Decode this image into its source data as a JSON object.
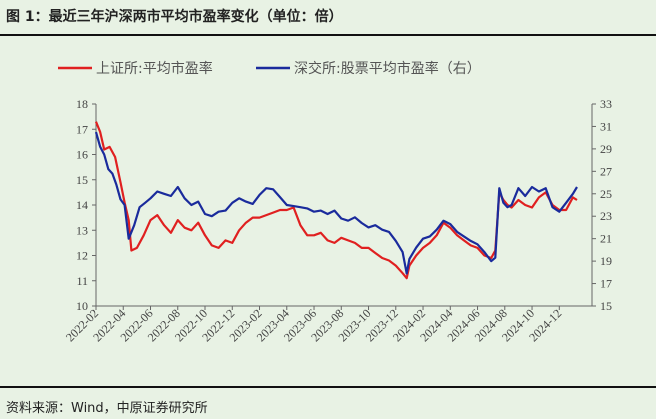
{
  "figure": {
    "title": "图 1：最近三年沪深两市平均市盈率变化（单位：倍）",
    "source": "资料来源：Wind，中原证券研究所"
  },
  "chart_data": {
    "type": "line",
    "legend": [
      "上证所:平均市盈率",
      "深交所:股票平均市盈率（右）"
    ],
    "y_left": {
      "min": 10,
      "max": 18,
      "ticks": [
        10,
        11,
        12,
        13,
        14,
        15,
        16,
        17,
        18
      ]
    },
    "y_right": {
      "min": 15,
      "max": 33,
      "ticks": [
        15,
        17,
        19,
        21,
        23,
        25,
        27,
        29,
        31,
        33
      ]
    },
    "x_labels": [
      "2022-02",
      "2022-04",
      "2022-06",
      "2022-08",
      "2022-10",
      "2022-12",
      "2023-02",
      "2023-04",
      "2023-06",
      "2023-08",
      "2023-10",
      "2023-12",
      "2024-02",
      "2024-04",
      "2024-06",
      "2024-08",
      "2024-10",
      "2024-12"
    ],
    "x_range": [
      0,
      36.4
    ],
    "series": [
      {
        "name": "上证所:平均市盈率",
        "color": "#e02020",
        "axis": "left",
        "points": [
          [
            0,
            17.3
          ],
          [
            0.3,
            16.9
          ],
          [
            0.6,
            16.2
          ],
          [
            1.0,
            16.3
          ],
          [
            1.4,
            15.9
          ],
          [
            1.8,
            14.9
          ],
          [
            2.1,
            14.1
          ],
          [
            2.4,
            13.4
          ],
          [
            2.6,
            12.2
          ],
          [
            3.0,
            12.3
          ],
          [
            3.5,
            12.8
          ],
          [
            4.0,
            13.4
          ],
          [
            4.5,
            13.6
          ],
          [
            5.0,
            13.2
          ],
          [
            5.5,
            12.9
          ],
          [
            6.0,
            13.4
          ],
          [
            6.5,
            13.1
          ],
          [
            7.0,
            13.0
          ],
          [
            7.5,
            13.3
          ],
          [
            8.0,
            12.8
          ],
          [
            8.5,
            12.4
          ],
          [
            9.0,
            12.3
          ],
          [
            9.5,
            12.6
          ],
          [
            10.0,
            12.5
          ],
          [
            10.5,
            13.0
          ],
          [
            11.0,
            13.3
          ],
          [
            11.5,
            13.5
          ],
          [
            12.0,
            13.5
          ],
          [
            12.5,
            13.6
          ],
          [
            13.0,
            13.7
          ],
          [
            13.5,
            13.8
          ],
          [
            14.0,
            13.8
          ],
          [
            14.5,
            13.9
          ],
          [
            15.0,
            13.2
          ],
          [
            15.5,
            12.8
          ],
          [
            16.0,
            12.8
          ],
          [
            16.5,
            12.9
          ],
          [
            17.0,
            12.6
          ],
          [
            17.5,
            12.5
          ],
          [
            18.0,
            12.7
          ],
          [
            18.5,
            12.6
          ],
          [
            19.0,
            12.5
          ],
          [
            19.5,
            12.3
          ],
          [
            20.0,
            12.3
          ],
          [
            20.5,
            12.1
          ],
          [
            21.0,
            11.9
          ],
          [
            21.5,
            11.8
          ],
          [
            22.0,
            11.6
          ],
          [
            22.5,
            11.3
          ],
          [
            22.8,
            11.1
          ],
          [
            23.0,
            11.6
          ],
          [
            23.5,
            12.0
          ],
          [
            24.0,
            12.3
          ],
          [
            24.5,
            12.5
          ],
          [
            25.0,
            12.8
          ],
          [
            25.5,
            13.3
          ],
          [
            26.0,
            13.1
          ],
          [
            26.5,
            12.8
          ],
          [
            27.0,
            12.6
          ],
          [
            27.5,
            12.4
          ],
          [
            28.0,
            12.3
          ],
          [
            28.5,
            12.0
          ],
          [
            29.0,
            11.9
          ],
          [
            29.3,
            12.2
          ],
          [
            29.6,
            14.5
          ],
          [
            29.9,
            14.2
          ],
          [
            30.2,
            14.0
          ],
          [
            30.5,
            13.9
          ],
          [
            31.0,
            14.2
          ],
          [
            31.5,
            14.0
          ],
          [
            32.0,
            13.9
          ],
          [
            32.5,
            14.3
          ],
          [
            33.0,
            14.5
          ],
          [
            33.5,
            14.0
          ],
          [
            34.0,
            13.8
          ],
          [
            34.5,
            13.8
          ],
          [
            35.0,
            14.3
          ],
          [
            35.3,
            14.2
          ]
        ]
      },
      {
        "name": "深交所:股票平均市盈率（右）",
        "color": "#1a2b9c",
        "axis": "right",
        "points": [
          [
            0,
            30.5
          ],
          [
            0.3,
            29.2
          ],
          [
            0.6,
            28.5
          ],
          [
            0.9,
            27.2
          ],
          [
            1.2,
            26.8
          ],
          [
            1.5,
            25.8
          ],
          [
            1.8,
            24.5
          ],
          [
            2.1,
            24.0
          ],
          [
            2.4,
            21.0
          ],
          [
            2.8,
            22.2
          ],
          [
            3.2,
            23.8
          ],
          [
            3.6,
            24.2
          ],
          [
            4.0,
            24.6
          ],
          [
            4.5,
            25.2
          ],
          [
            5.0,
            25.0
          ],
          [
            5.5,
            24.8
          ],
          [
            6.0,
            25.6
          ],
          [
            6.5,
            24.6
          ],
          [
            7.0,
            24.0
          ],
          [
            7.5,
            24.3
          ],
          [
            8.0,
            23.2
          ],
          [
            8.5,
            23.0
          ],
          [
            9.0,
            23.4
          ],
          [
            9.5,
            23.5
          ],
          [
            10.0,
            24.2
          ],
          [
            10.5,
            24.6
          ],
          [
            11.0,
            24.3
          ],
          [
            11.5,
            24.1
          ],
          [
            12.0,
            24.9
          ],
          [
            12.5,
            25.5
          ],
          [
            13.0,
            25.4
          ],
          [
            13.5,
            24.7
          ],
          [
            14.0,
            24.0
          ],
          [
            14.5,
            23.9
          ],
          [
            15.0,
            23.8
          ],
          [
            15.5,
            23.7
          ],
          [
            16.0,
            23.4
          ],
          [
            16.5,
            23.5
          ],
          [
            17.0,
            23.2
          ],
          [
            17.5,
            23.5
          ],
          [
            18.0,
            22.8
          ],
          [
            18.5,
            22.6
          ],
          [
            19.0,
            22.9
          ],
          [
            19.5,
            22.4
          ],
          [
            20.0,
            22.0
          ],
          [
            20.5,
            22.2
          ],
          [
            21.0,
            21.8
          ],
          [
            21.5,
            21.6
          ],
          [
            22.0,
            20.8
          ],
          [
            22.5,
            19.8
          ],
          [
            22.8,
            17.9
          ],
          [
            23.0,
            19.2
          ],
          [
            23.5,
            20.2
          ],
          [
            24.0,
            21.0
          ],
          [
            24.5,
            21.2
          ],
          [
            25.0,
            21.8
          ],
          [
            25.5,
            22.6
          ],
          [
            26.0,
            22.3
          ],
          [
            26.5,
            21.6
          ],
          [
            27.0,
            21.2
          ],
          [
            27.5,
            20.8
          ],
          [
            28.0,
            20.5
          ],
          [
            28.5,
            19.8
          ],
          [
            29.0,
            19.0
          ],
          [
            29.3,
            19.3
          ],
          [
            29.6,
            25.5
          ],
          [
            29.9,
            24.2
          ],
          [
            30.2,
            23.8
          ],
          [
            30.5,
            24.0
          ],
          [
            31.0,
            25.5
          ],
          [
            31.5,
            24.8
          ],
          [
            32.0,
            25.6
          ],
          [
            32.5,
            25.2
          ],
          [
            33.0,
            25.5
          ],
          [
            33.5,
            23.8
          ],
          [
            34.0,
            23.4
          ],
          [
            34.5,
            24.2
          ],
          [
            35.0,
            25.0
          ],
          [
            35.3,
            25.6
          ]
        ]
      }
    ]
  }
}
